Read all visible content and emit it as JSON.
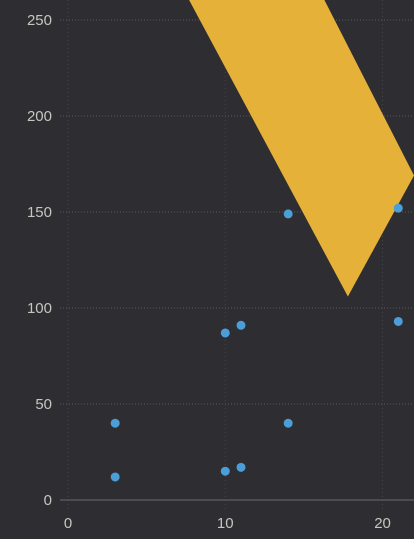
{
  "chart_data": {
    "type": "scatter",
    "title": "",
    "xlabel": "",
    "ylabel": "",
    "xlim": [
      0,
      22
    ],
    "ylim": [
      0,
      250
    ],
    "x_ticks": [
      0,
      10,
      20
    ],
    "x_tick_labels": [
      "0",
      "10",
      "20"
    ],
    "y_ticks": [
      0,
      50,
      100,
      150,
      200,
      250
    ],
    "y_tick_labels": [
      "0",
      "50",
      "100",
      "150",
      "200",
      "250"
    ],
    "grid": true,
    "legend": "none",
    "series": [
      {
        "points": [
          {
            "x": 3,
            "y": 12
          },
          {
            "x": 3,
            "y": 40
          },
          {
            "x": 10,
            "y": 15
          },
          {
            "x": 11,
            "y": 17
          },
          {
            "x": 10,
            "y": 87
          },
          {
            "x": 11,
            "y": 91
          },
          {
            "x": 14,
            "y": 40
          },
          {
            "x": 14,
            "y": 149
          },
          {
            "x": 21,
            "y": 152
          },
          {
            "x": 21,
            "y": 93
          }
        ],
        "color": "#4a9fd8"
      }
    ],
    "band": {
      "color": "#f0b83a",
      "polygon": [
        {
          "x": 7.7,
          "y": 250
        },
        {
          "x": 16.3,
          "y": 250
        },
        {
          "x": 22,
          "y": 169
        },
        {
          "x": 17.8,
          "y": 106
        }
      ]
    }
  }
}
